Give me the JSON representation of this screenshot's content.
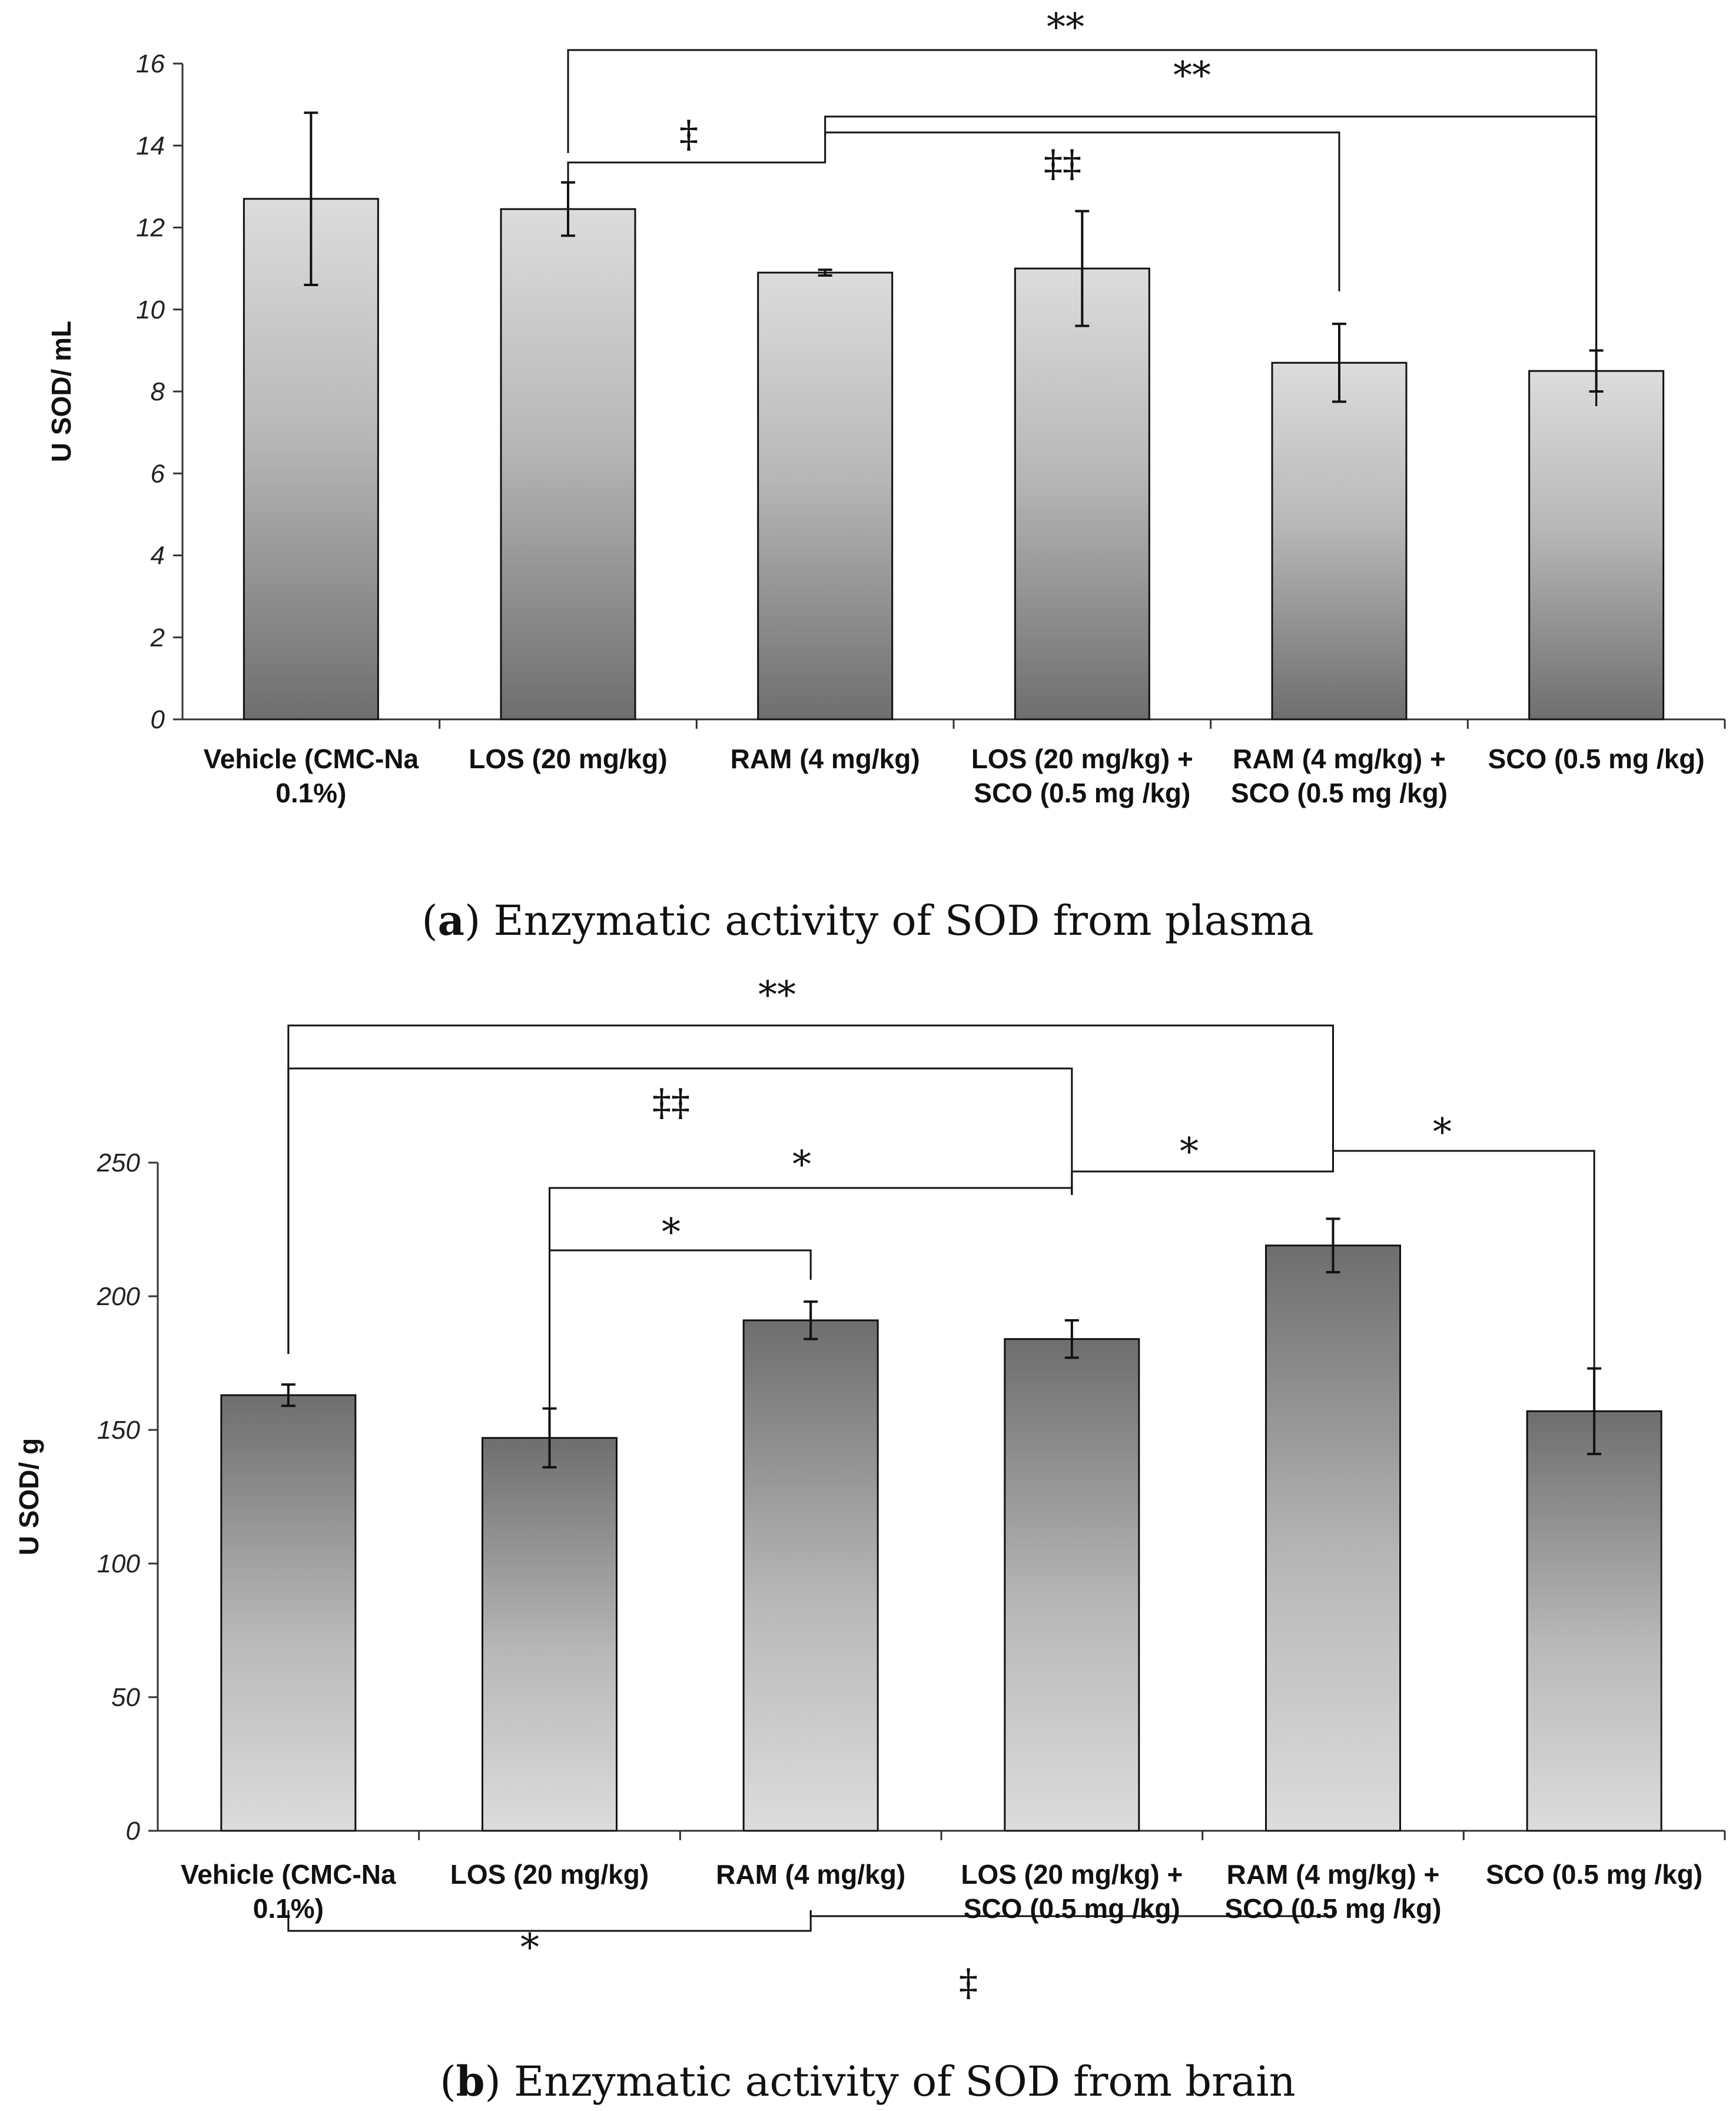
{
  "chart_data": [
    {
      "type": "bar",
      "panel": "a",
      "caption_letter": "a",
      "caption_text": "Enzymatic activity of SOD from plasma",
      "categories": [
        [
          "Vehicle (CMC-Na",
          "0.1%)"
        ],
        [
          "LOS (20 mg/kg)"
        ],
        [
          "RAM (4 mg/kg)"
        ],
        [
          "LOS (20 mg/kg) +",
          "SCO (0.5 mg /kg)"
        ],
        [
          "RAM (4 mg/kg) +",
          "SCO (0.5 mg /kg)"
        ],
        [
          "SCO (0.5 mg /kg)"
        ]
      ],
      "values": [
        12.7,
        12.45,
        10.9,
        11.0,
        8.7,
        8.5
      ],
      "errors": [
        2.1,
        0.65,
        0.07,
        1.4,
        0.95,
        0.5
      ],
      "ylabel": "U SOD/ mL",
      "xlabel": "",
      "ylim": [
        0,
        16
      ],
      "yticks": [
        "0",
        "2",
        "4",
        "6",
        "8",
        "10",
        "12",
        "14",
        "16"
      ],
      "gradient": "light-top",
      "significance": [
        {
          "from": 1,
          "to": 5,
          "symbol": "**"
        },
        {
          "from": 2,
          "to": 5,
          "symbol": "**"
        },
        {
          "from": 2,
          "to": 4,
          "symbol": "‡‡"
        },
        {
          "from": 1,
          "to": 2,
          "symbol": "‡"
        }
      ]
    },
    {
      "type": "bar",
      "panel": "b",
      "caption_letter": "b",
      "caption_text": "Enzymatic activity of SOD from brain",
      "categories": [
        [
          "Vehicle (CMC-Na",
          "0.1%)"
        ],
        [
          "LOS (20 mg/kg)"
        ],
        [
          "RAM (4 mg/kg)"
        ],
        [
          "LOS (20 mg/kg) +",
          "SCO (0.5 mg /kg)"
        ],
        [
          "RAM (4 mg/kg) +",
          "SCO (0.5 mg /kg)"
        ],
        [
          "SCO (0.5 mg /kg)"
        ]
      ],
      "values": [
        163,
        147,
        191,
        184,
        219,
        157
      ],
      "errors": [
        4,
        11,
        7,
        7,
        10,
        16
      ],
      "ylabel": "U SOD/ g",
      "xlabel": "",
      "ylim": [
        0,
        250
      ],
      "yticks": [
        "0",
        "50",
        "100",
        "150",
        "200",
        "250"
      ],
      "gradient": "dark-top",
      "significance": [
        {
          "from": 0,
          "to": 4,
          "symbol": "**"
        },
        {
          "from": 0,
          "to": 3,
          "symbol": "‡‡"
        },
        {
          "from": 1,
          "to": 3,
          "symbol": "*"
        },
        {
          "from": 3,
          "to": 4,
          "symbol": "*"
        },
        {
          "from": 4,
          "to": 5,
          "symbol": "*"
        },
        {
          "from": 1,
          "to": 2,
          "symbol": "*"
        },
        {
          "from": 0,
          "to": 2,
          "symbol": "*"
        },
        {
          "from": 2,
          "to": 4,
          "symbol": "‡"
        }
      ]
    }
  ]
}
